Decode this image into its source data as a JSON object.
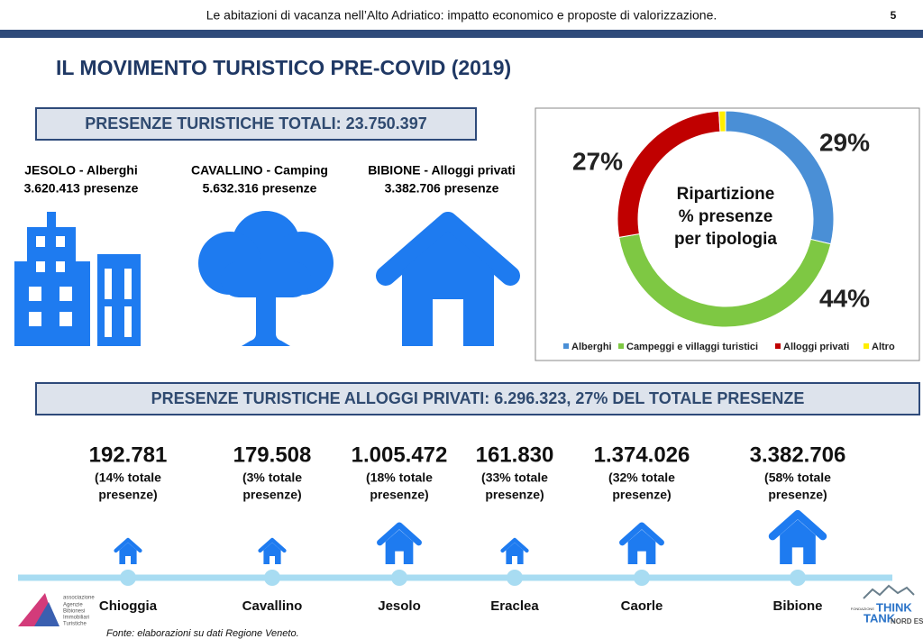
{
  "header": {
    "text": "Le abitazioni di vacanza nell’Alto Adriatico: impatto economico e proposte di valorizzazione.",
    "page": "5"
  },
  "title": "IL MOVIMENTO TURISTICO PRE-COVID (2019)",
  "total_box": "PRESENZE TURISTICHE TOTALI: 23.750.397",
  "highlights": [
    {
      "label": "JESOLO - Alberghi",
      "value": "3.620.413 presenze"
    },
    {
      "label": "CAVALLINO - Camping",
      "value": "5.632.316 presenze"
    },
    {
      "label": "BIBIONE - Alloggi privati",
      "value": "3.382.706 presenze"
    }
  ],
  "chart_data": {
    "type": "donut",
    "center_text": [
      "Ripartizione",
      "% presenze",
      "per tipologia"
    ],
    "categories": [
      "Alberghi",
      "Campeggi e villaggi turistici",
      "Alloggi privati",
      "Altro"
    ],
    "values": [
      29,
      44,
      27,
      1
    ],
    "value_labels": [
      "29%",
      "44%",
      "27%",
      null
    ],
    "colors": [
      "#4a8fd6",
      "#7ec843",
      "#c00000",
      "#ffee00"
    ],
    "legend": "bottom"
  },
  "private_box": "PRESENZE TURISTICHE ALLOGGI PRIVATI: 6.296.323, 27% DEL TOTALE PRESENZE",
  "cities": [
    {
      "name": "Chioggia",
      "value": "192.781",
      "share": [
        "(14% totale",
        "presenze)"
      ]
    },
    {
      "name": "Cavallino",
      "value": "179.508",
      "share": [
        "(3% totale",
        "presenze)"
      ]
    },
    {
      "name": "Jesolo",
      "value": "1.005.472",
      "share": [
        "(18% totale",
        "presenze)"
      ]
    },
    {
      "name": "Eraclea",
      "value": "161.830",
      "share": [
        "(33% totale",
        "presenze)"
      ]
    },
    {
      "name": "Caorle",
      "value": "1.374.026",
      "share": [
        "(32% totale",
        "presenze)"
      ]
    },
    {
      "name": "Bibione",
      "value": "3.382.706",
      "share": [
        "(58% totale",
        "presenze)"
      ]
    }
  ],
  "source": "Fonte: elaborazioni su dati Regione Veneto.",
  "logo_left": [
    "associazione",
    "Agenzie",
    "Bibionesi",
    "Immobiliari",
    "Turistiche"
  ],
  "logo_right": [
    "FONDAZIONE",
    "THINK",
    "TANK",
    "NORD EST"
  ]
}
